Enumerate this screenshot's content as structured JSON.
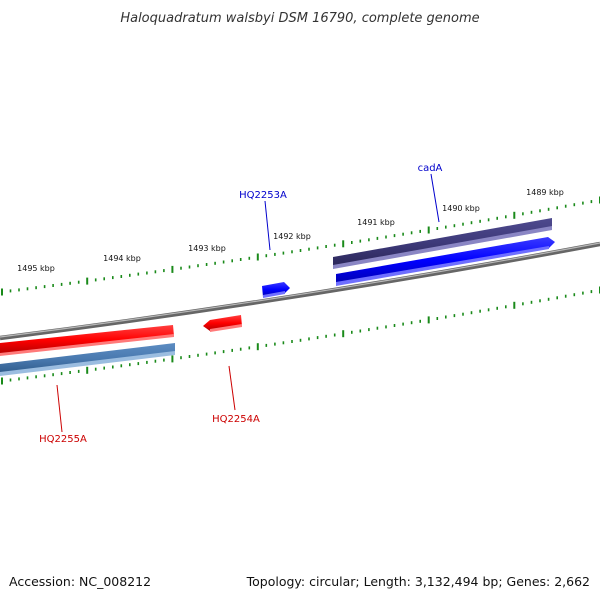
{
  "title": "Haloquadratum walsbyi DSM 16790, complete genome",
  "footer": {
    "accession": "Accession: NC_008212",
    "topology": "Topology: circular; Length: 3,132,494 bp; Genes: 2,662"
  },
  "colors": {
    "backbone": "#808080",
    "tick": "#1a8a1a",
    "forward_gene": "#0000ff",
    "reverse_gene": "#ff0000",
    "forward_cds": "#3e3a7a",
    "reverse_cds": "#4a7ab0",
    "forward_label": "#0000cc",
    "reverse_label": "#cc0000"
  },
  "tick_labels": [
    "1489 kbp",
    "1490 kbp",
    "1491 kbp",
    "1492 kbp",
    "1493 kbp",
    "1494 kbp",
    "1495 kbp"
  ],
  "genes": [
    {
      "name": "cadA",
      "strand": "forward"
    },
    {
      "name": "HQ2253A",
      "strand": "forward"
    },
    {
      "name": "HQ2254A",
      "strand": "reverse"
    },
    {
      "name": "HQ2255A",
      "strand": "reverse"
    }
  ]
}
